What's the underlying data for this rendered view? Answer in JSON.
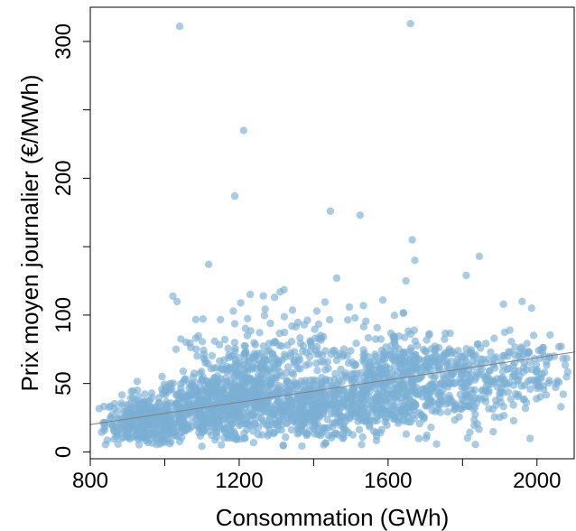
{
  "chart_data": {
    "type": "scatter",
    "title": "",
    "xlabel": "Consommation (GWh)",
    "ylabel": "Prix moyen journalier (€/MWh)",
    "xlim": [
      800,
      2100
    ],
    "ylim": [
      -5,
      325
    ],
    "x_ticks": [
      800,
      1200,
      1600,
      2000
    ],
    "x_minor_ticks": [
      1000,
      1400,
      1800
    ],
    "y_ticks": [
      0,
      50,
      100,
      200,
      300
    ],
    "y_minor_ticks": [
      150,
      250
    ],
    "x_tick_labels": [
      "800",
      "1200",
      "1600",
      "2000"
    ],
    "y_tick_labels": [
      "0",
      "50",
      "100",
      "200",
      "300"
    ],
    "grid": false,
    "point_color": "#7bafd4",
    "point_opacity": 0.65,
    "line_color": "#808080",
    "trend_line": {
      "x": [
        800,
        2100
      ],
      "y": [
        20,
        73
      ]
    },
    "outliers": [
      {
        "x": 1040,
        "y": 311
      },
      {
        "x": 1660,
        "y": 313
      },
      {
        "x": 1212,
        "y": 235
      },
      {
        "x": 1188,
        "y": 187
      },
      {
        "x": 1445,
        "y": 176
      },
      {
        "x": 1525,
        "y": 173
      },
      {
        "x": 1665,
        "y": 155
      },
      {
        "x": 1845,
        "y": 143
      },
      {
        "x": 1118,
        "y": 137
      },
      {
        "x": 1672,
        "y": 140
      },
      {
        "x": 1462,
        "y": 127
      },
      {
        "x": 1810,
        "y": 129
      },
      {
        "x": 1648,
        "y": 125
      },
      {
        "x": 1310,
        "y": 117
      },
      {
        "x": 1295,
        "y": 113
      },
      {
        "x": 1265,
        "y": 114
      },
      {
        "x": 1960,
        "y": 110
      },
      {
        "x": 1910,
        "y": 108
      }
    ],
    "dense_clusters": [
      {
        "cx": 950,
        "cy": 22,
        "sx": 55,
        "sy": 9,
        "n": 380
      },
      {
        "cx": 1110,
        "cy": 32,
        "sx": 70,
        "sy": 12,
        "n": 420
      },
      {
        "cx": 1230,
        "cy": 45,
        "sx": 60,
        "sy": 16,
        "n": 300
      },
      {
        "cx": 1400,
        "cy": 32,
        "sx": 90,
        "sy": 13,
        "n": 380
      },
      {
        "cx": 1580,
        "cy": 40,
        "sx": 90,
        "sy": 16,
        "n": 330
      },
      {
        "cx": 1660,
        "cy": 65,
        "sx": 85,
        "sy": 14,
        "n": 170
      },
      {
        "cx": 1800,
        "cy": 48,
        "sx": 80,
        "sy": 15,
        "n": 220
      },
      {
        "cx": 1960,
        "cy": 62,
        "sx": 70,
        "sy": 12,
        "n": 110
      },
      {
        "cx": 1250,
        "cy": 78,
        "sx": 110,
        "sy": 17,
        "n": 90
      },
      {
        "cx": 1500,
        "cy": 75,
        "sx": 130,
        "sy": 16,
        "n": 90
      }
    ]
  }
}
